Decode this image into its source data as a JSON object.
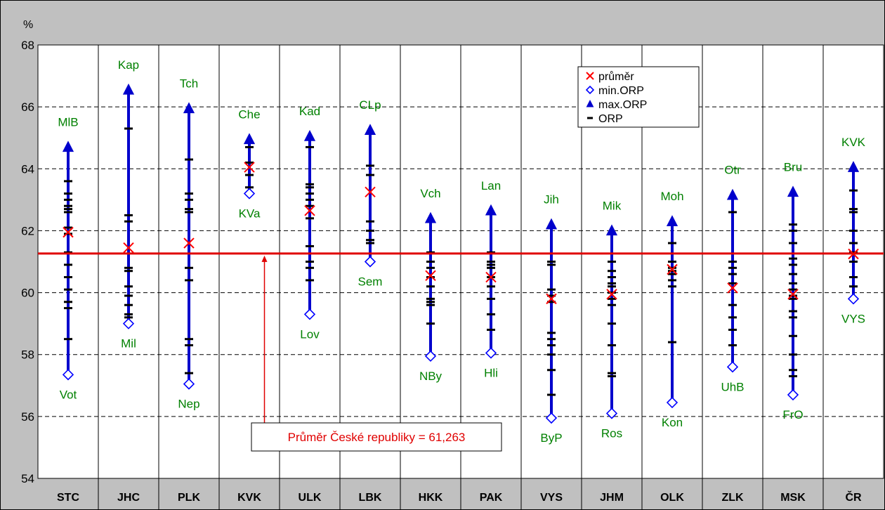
{
  "chart_data": {
    "type": "scatter",
    "y_unit_label": "%",
    "ylim": [
      54,
      68
    ],
    "yticks": [
      54,
      56,
      58,
      60,
      62,
      64,
      66,
      68
    ],
    "grid": true,
    "legend_position": "top-center",
    "legend": {
      "mean": "průměr",
      "min": "min.ORP",
      "max": "max.ORP",
      "orp": "ORP"
    },
    "reference": {
      "value": 61.263,
      "label": "Průměr České republiky = 61,263"
    },
    "colors": {
      "range_line": "#0000cc",
      "mean_marker": "#ff0000",
      "min_marker": "#0000ff",
      "max_marker": "#0000cc",
      "orp_tick": "#000000",
      "reference_line": "#e00000",
      "label_text": "#008000"
    },
    "categories": [
      {
        "name": "STC",
        "mean": 61.95,
        "min": 57.35,
        "max": 64.7,
        "min_label": "Vot",
        "max_label": "MlB",
        "orp": [
          63.6,
          63.2,
          63.0,
          62.8,
          62.7,
          62.6,
          62.1,
          61.9,
          61.3,
          60.9,
          60.5,
          60.1,
          59.7,
          59.5,
          58.5,
          57.35
        ]
      },
      {
        "name": "JHC",
        "mean": 61.45,
        "min": 59.0,
        "max": 66.55,
        "min_label": "Mil",
        "max_label": "Kap",
        "orp": [
          65.3,
          62.5,
          62.3,
          60.8,
          60.7,
          60.2,
          59.9,
          59.6,
          59.3,
          59.2,
          59.0
        ]
      },
      {
        "name": "PLK",
        "mean": 61.6,
        "min": 57.05,
        "max": 65.95,
        "min_label": "Nep",
        "max_label": "Tch",
        "orp": [
          64.3,
          63.2,
          63.0,
          62.7,
          62.6,
          60.8,
          60.4,
          58.5,
          58.3,
          57.4,
          57.05
        ]
      },
      {
        "name": "KVK",
        "mean": 64.05,
        "min": 63.2,
        "max": 64.95,
        "min_label": "KVa",
        "max_label": "Che",
        "orp": [
          64.7,
          64.2,
          63.8,
          63.4,
          63.2
        ]
      },
      {
        "name": "ULK",
        "mean": 62.65,
        "min": 59.3,
        "max": 65.05,
        "min_label": "Lov",
        "max_label": "Kad",
        "orp": [
          64.7,
          63.5,
          63.4,
          63.2,
          63.0,
          62.8,
          62.4,
          61.5,
          61.0,
          60.8,
          60.4,
          59.3
        ]
      },
      {
        "name": "LBK",
        "mean": 63.25,
        "min": 61.0,
        "max": 65.25,
        "min_label": "Sem",
        "max_label": "CLp",
        "orp": [
          64.1,
          63.8,
          62.3,
          62.0,
          61.7,
          61.6
        ]
      },
      {
        "name": "HKK",
        "mean": 60.55,
        "min": 57.95,
        "max": 62.4,
        "min_label": "NBy",
        "max_label": "Vch",
        "orp": [
          61.3,
          61.0,
          60.8,
          60.5,
          60.2,
          59.8,
          59.7,
          59.6,
          59.0,
          57.95
        ]
      },
      {
        "name": "PAK",
        "mean": 60.5,
        "min": 58.05,
        "max": 62.65,
        "min_label": "Hli",
        "max_label": "Lan",
        "orp": [
          61.3,
          61.0,
          60.9,
          60.8,
          60.5,
          60.2,
          59.8,
          59.3,
          58.8,
          58.05
        ]
      },
      {
        "name": "VYS",
        "mean": 59.8,
        "min": 55.95,
        "max": 62.2,
        "min_label": "ByP",
        "max_label": "Jih",
        "orp": [
          61.0,
          60.9,
          60.1,
          59.9,
          59.7,
          58.7,
          58.5,
          58.3,
          58.0,
          57.5,
          56.7,
          55.95
        ]
      },
      {
        "name": "JHM",
        "mean": 59.95,
        "min": 56.1,
        "max": 62.0,
        "min_label": "Ros",
        "max_label": "Mik",
        "orp": [
          61.0,
          60.7,
          60.5,
          60.3,
          60.2,
          60.0,
          59.8,
          59.6,
          59.0,
          58.3,
          57.4,
          57.3,
          56.1
        ]
      },
      {
        "name": "OLK",
        "mean": 60.75,
        "min": 56.45,
        "max": 62.3,
        "min_label": "Kon",
        "max_label": "Moh",
        "orp": [
          61.6,
          61.0,
          60.8,
          60.7,
          60.6,
          60.4,
          60.2,
          58.4,
          56.45
        ]
      },
      {
        "name": "ZLK",
        "mean": 60.15,
        "min": 57.6,
        "max": 63.15,
        "min_label": "UhB",
        "max_label": "Otr",
        "orp": [
          62.6,
          61.0,
          60.8,
          60.6,
          60.3,
          59.6,
          59.2,
          58.8,
          58.3,
          57.6
        ]
      },
      {
        "name": "MSK",
        "mean": 59.95,
        "min": 56.7,
        "max": 63.25,
        "min_label": "FrO",
        "max_label": "Bru",
        "orp": [
          62.2,
          62.0,
          61.6,
          61.1,
          60.9,
          60.6,
          60.3,
          60.1,
          59.9,
          59.8,
          59.4,
          59.2,
          58.6,
          58.0,
          57.5,
          57.3,
          56.7
        ]
      },
      {
        "name": "ČR",
        "mean": 61.25,
        "min": 59.8,
        "max": 64.05,
        "min_label": "VYS",
        "max_label": "KVK",
        "orp": [
          63.3,
          62.7,
          62.6,
          62.0,
          61.6,
          61.3,
          61.0,
          60.5,
          60.2,
          59.8
        ]
      }
    ]
  }
}
